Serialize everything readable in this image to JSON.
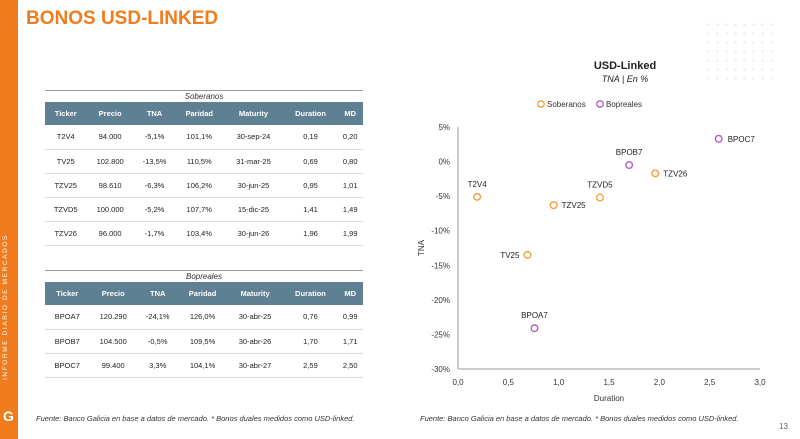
{
  "sidebar": {
    "vertical_text": "INFORME DIARIO DE MERCADOS",
    "logo": "G"
  },
  "page": {
    "title": "BONOS USD-LINKED",
    "number": "13"
  },
  "soberanos": {
    "caption": "Soberanos",
    "headers": [
      "Ticker",
      "Precio",
      "TNA",
      "Paridad",
      "Maturity",
      "Duration",
      "MD"
    ],
    "rows": [
      [
        "T2V4",
        "94.000",
        "-5,1%",
        "101,1%",
        "30-sep-24",
        "0,19",
        "0,20"
      ],
      [
        "TV25",
        "102.800",
        "-13,5%",
        "110,5%",
        "31-mar-25",
        "0,69",
        "0,80"
      ],
      [
        "TZV25",
        "98.610",
        "-6,3%",
        "106,2%",
        "30-jun-25",
        "0,95",
        "1,01"
      ],
      [
        "TZVD5",
        "100.000",
        "-5,2%",
        "107,7%",
        "15-dic-25",
        "1,41",
        "1,49"
      ],
      [
        "TZV26",
        "96.000",
        "-1,7%",
        "103,4%",
        "30-jun-26",
        "1,96",
        "1,99"
      ]
    ]
  },
  "bopreales": {
    "caption": "Bopreales",
    "headers": [
      "Ticker",
      "Precio",
      "TNA",
      "Paridad",
      "Maturity",
      "Duration",
      "MD"
    ],
    "rows": [
      [
        "BPOA7",
        "120.290",
        "-24,1%",
        "126,0%",
        "30-abr-25",
        "0,76",
        "0,99"
      ],
      [
        "BPOB7",
        "104.500",
        "-0,5%",
        "109,5%",
        "30-abr-26",
        "1,70",
        "1,71"
      ],
      [
        "BPOC7",
        "99.400",
        "3,3%",
        "104,1%",
        "30-abr-27",
        "2,59",
        "2,50"
      ]
    ]
  },
  "footnote_left": "Fuente: Banco Galicia en base a datos de mercado. * Bonos duales medidos como USD-linked.",
  "footnote_right": "Fuente: Banco Galicia en base a datos de mercado. * Bonos duales medidos como USD-linked.",
  "chart_data": {
    "type": "scatter",
    "title": "USD-Linked",
    "subtitle": "TNA | En %",
    "xlabel": "Duration",
    "ylabel": "TNA",
    "xlim": [
      0,
      3
    ],
    "ylim": [
      -30,
      5
    ],
    "xticks": [
      0,
      0.5,
      1,
      1.5,
      2,
      2.5,
      3
    ],
    "xtick_labels": [
      "0,0",
      "0,5",
      "1,0",
      "1,5",
      "2,0",
      "2,5",
      "3,0"
    ],
    "yticks": [
      5,
      0,
      -5,
      -10,
      -15,
      -20,
      -25,
      -30
    ],
    "ytick_labels": [
      "5%",
      "0%",
      "-5%",
      "-10%",
      "-15%",
      "-20%",
      "-25%",
      "-30%"
    ],
    "legend_position": "top",
    "series": [
      {
        "name": "Soberanos",
        "color": "#f0a040",
        "points": [
          {
            "label": "T2V4",
            "x": 0.19,
            "y": -5.1
          },
          {
            "label": "TV25",
            "x": 0.69,
            "y": -13.5
          },
          {
            "label": "TZV25",
            "x": 0.95,
            "y": -6.3
          },
          {
            "label": "TZVD5",
            "x": 1.41,
            "y": -5.2
          },
          {
            "label": "TZV26",
            "x": 1.96,
            "y": -1.7
          }
        ]
      },
      {
        "name": "Bopreales",
        "color": "#b45cc8",
        "points": [
          {
            "label": "BPOA7",
            "x": 0.76,
            "y": -24.1
          },
          {
            "label": "BPOB7",
            "x": 1.7,
            "y": -0.5
          },
          {
            "label": "BPOC7",
            "x": 2.59,
            "y": 3.3
          }
        ]
      }
    ]
  }
}
